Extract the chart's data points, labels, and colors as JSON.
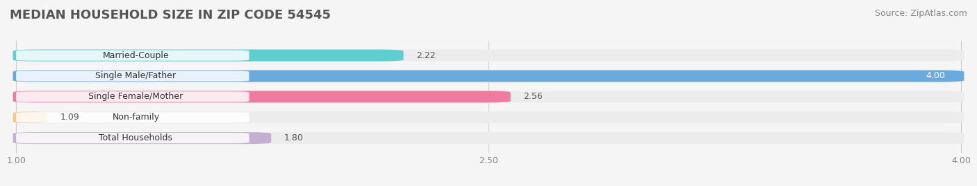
{
  "title": "MEDIAN HOUSEHOLD SIZE IN ZIP CODE 54545",
  "source": "Source: ZipAtlas.com",
  "categories": [
    "Married-Couple",
    "Single Male/Father",
    "Single Female/Mother",
    "Non-family",
    "Total Households"
  ],
  "values": [
    2.22,
    4.0,
    2.56,
    1.09,
    1.8
  ],
  "colors": [
    "#5ecfcf",
    "#6aabdf",
    "#f07aa0",
    "#f5c98a",
    "#c4aed4"
  ],
  "xlim": [
    1.0,
    4.0
  ],
  "xticks": [
    1.0,
    2.5,
    4.0
  ],
  "bar_height": 0.55,
  "background_color": "#f5f5f5",
  "bar_background_color": "#ececec",
  "title_fontsize": 13,
  "label_fontsize": 9,
  "value_fontsize": 9,
  "source_fontsize": 9,
  "title_color": "#555555",
  "label_color": "#333333",
  "value_color": "#555555",
  "source_color": "#888888",
  "tick_color": "#888888"
}
